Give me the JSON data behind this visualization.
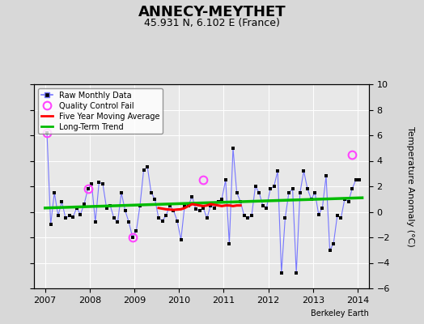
{
  "title": "ANNECY-MEYTHET",
  "subtitle": "45.931 N, 6.102 E (France)",
  "ylabel": "Temperature Anomaly (°C)",
  "credit": "Berkeley Earth",
  "ylim": [
    -6,
    10
  ],
  "yticks": [
    -6,
    -4,
    -2,
    0,
    2,
    4,
    6,
    8,
    10
  ],
  "xlim": [
    2006.75,
    2014.25
  ],
  "xticks": [
    2007,
    2008,
    2009,
    2010,
    2011,
    2012,
    2013,
    2014
  ],
  "bg_color": "#d8d8d8",
  "plot_bg_color": "#e8e8e8",
  "raw_x": [
    2007.042,
    2007.125,
    2007.208,
    2007.292,
    2007.375,
    2007.458,
    2007.542,
    2007.625,
    2007.708,
    2007.792,
    2007.875,
    2007.958,
    2008.042,
    2008.125,
    2008.208,
    2008.292,
    2008.375,
    2008.458,
    2008.542,
    2008.625,
    2008.708,
    2008.792,
    2008.875,
    2008.958,
    2009.042,
    2009.125,
    2009.208,
    2009.292,
    2009.375,
    2009.458,
    2009.542,
    2009.625,
    2009.708,
    2009.792,
    2009.875,
    2009.958,
    2010.042,
    2010.125,
    2010.208,
    2010.292,
    2010.375,
    2010.458,
    2010.542,
    2010.625,
    2010.708,
    2010.792,
    2010.875,
    2010.958,
    2011.042,
    2011.125,
    2011.208,
    2011.292,
    2011.375,
    2011.458,
    2011.542,
    2011.625,
    2011.708,
    2011.792,
    2011.875,
    2011.958,
    2012.042,
    2012.125,
    2012.208,
    2012.292,
    2012.375,
    2012.458,
    2012.542,
    2012.625,
    2012.708,
    2012.792,
    2012.875,
    2012.958,
    2013.042,
    2013.125,
    2013.208,
    2013.292,
    2013.375,
    2013.458,
    2013.542,
    2013.625,
    2013.708,
    2013.792,
    2013.875,
    2013.958,
    2014.042
  ],
  "raw_y": [
    6.2,
    -1.0,
    1.5,
    -0.3,
    0.8,
    -0.5,
    -0.3,
    -0.4,
    0.3,
    -0.2,
    0.6,
    1.8,
    2.2,
    -0.8,
    2.3,
    2.2,
    0.3,
    0.5,
    -0.5,
    -0.8,
    1.5,
    0.1,
    -0.8,
    -2.0,
    -1.5,
    0.5,
    3.3,
    3.5,
    1.5,
    1.0,
    -0.5,
    -0.7,
    -0.3,
    0.5,
    0.1,
    -0.7,
    -2.2,
    0.5,
    0.5,
    1.2,
    0.2,
    0.1,
    0.3,
    -0.5,
    0.5,
    0.3,
    0.8,
    1.0,
    2.5,
    -2.5,
    5.0,
    1.5,
    0.8,
    -0.3,
    -0.5,
    -0.3,
    2.0,
    1.5,
    0.5,
    0.3,
    1.8,
    2.0,
    3.2,
    -4.8,
    -0.5,
    1.5,
    1.8,
    -4.8,
    1.5,
    3.2,
    1.8,
    1.0,
    1.5,
    -0.2,
    0.3,
    2.8,
    -3.0,
    -2.5,
    -0.3,
    -0.5,
    1.0,
    0.8,
    1.8,
    2.5,
    2.5
  ],
  "qc_fail_x": [
    2007.042,
    2007.958,
    2008.958,
    2010.542,
    2013.875
  ],
  "qc_fail_y": [
    6.2,
    1.8,
    -2.0,
    2.5,
    4.5
  ],
  "moving_avg_x": [
    2009.542,
    2009.625,
    2009.708,
    2009.792,
    2009.875,
    2009.958,
    2010.042,
    2010.125,
    2010.208,
    2010.292,
    2010.375,
    2010.458,
    2010.542,
    2010.625,
    2010.708,
    2010.792,
    2010.875,
    2010.958,
    2011.042,
    2011.125,
    2011.208,
    2011.292,
    2011.375
  ],
  "moving_avg_y": [
    0.3,
    0.25,
    0.2,
    0.18,
    0.15,
    0.18,
    0.2,
    0.3,
    0.45,
    0.6,
    0.55,
    0.5,
    0.45,
    0.5,
    0.6,
    0.55,
    0.5,
    0.45,
    0.5,
    0.5,
    0.45,
    0.5,
    0.5
  ],
  "trend_x": [
    2007.0,
    2014.1
  ],
  "trend_y": [
    0.3,
    1.1
  ],
  "line_color": "#7777ff",
  "dot_color": "#000000",
  "qc_color": "#ff44ff",
  "ma_color": "#ff0000",
  "trend_color": "#00bb00",
  "title_fontsize": 13,
  "subtitle_fontsize": 9,
  "tick_fontsize": 8,
  "legend_fontsize": 7,
  "credit_fontsize": 7
}
